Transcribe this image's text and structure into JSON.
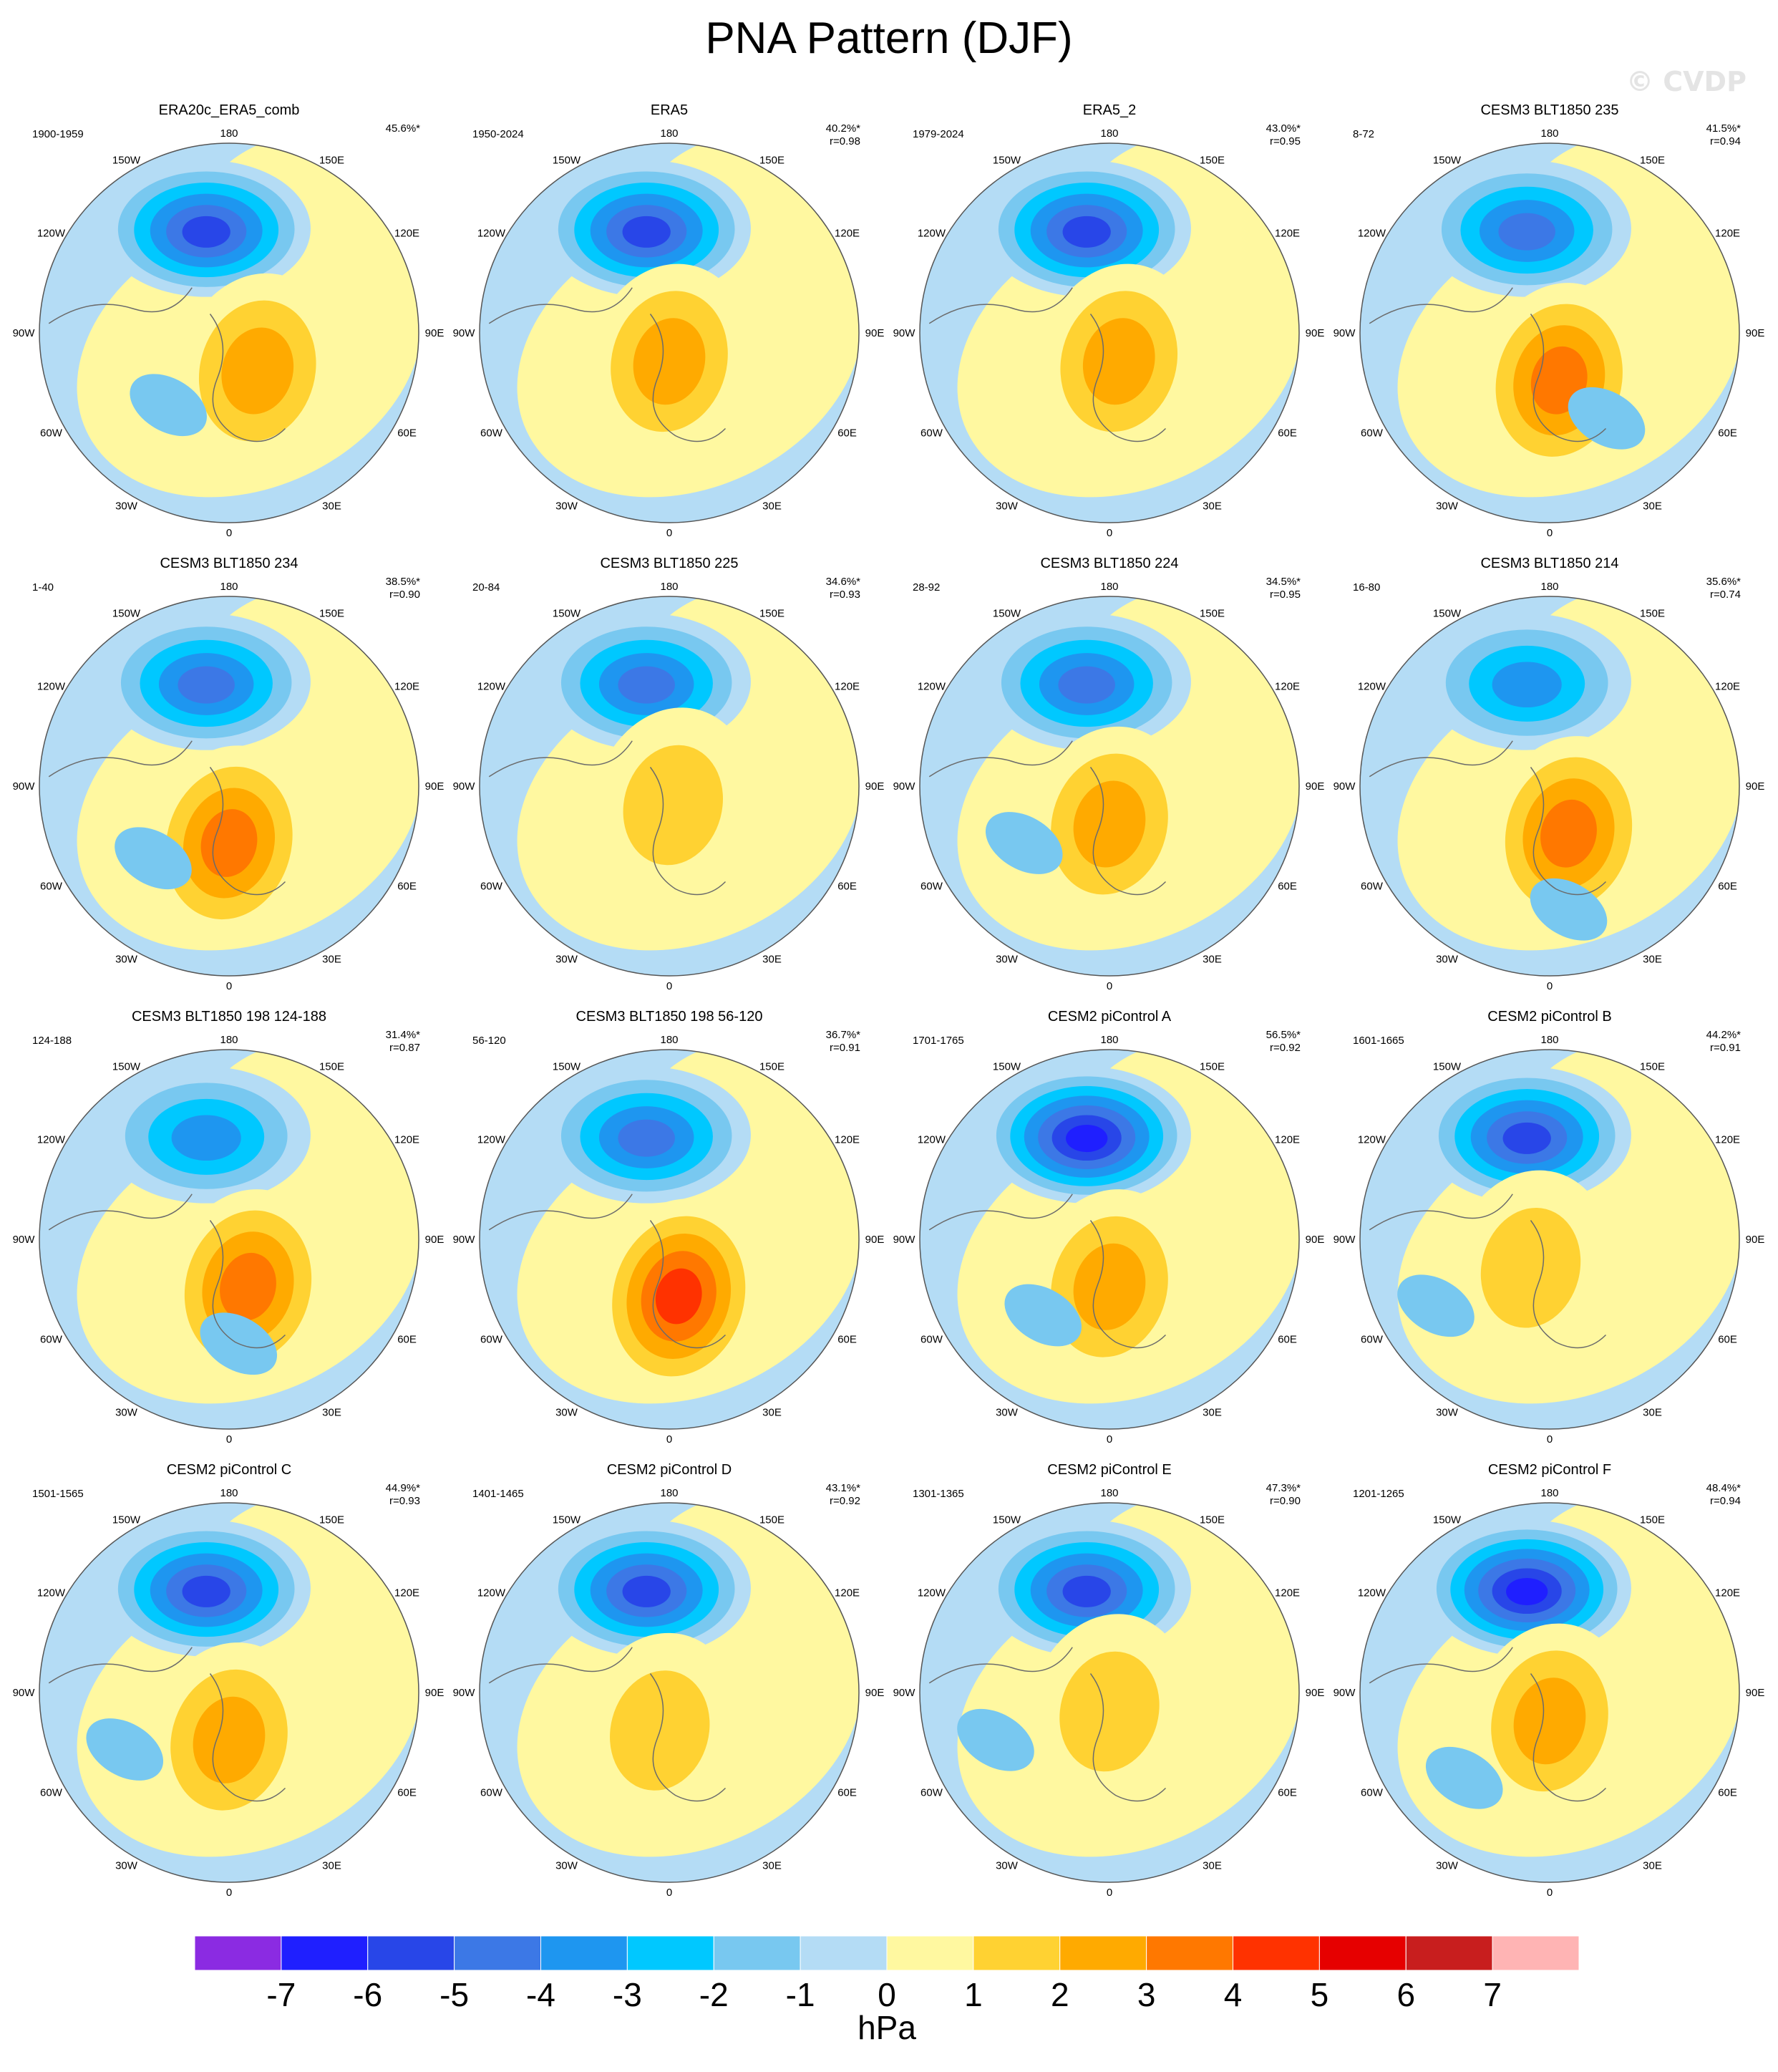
{
  "title": "PNA Pattern (DJF)",
  "watermark": "© CVDP",
  "chart_data": {
    "type": "contour-map-grid",
    "projection": "north-polar-stereographic",
    "variable": "sea level pressure anomaly",
    "units": "hPa",
    "longitude_labels": [
      "180",
      "150E",
      "120E",
      "90E",
      "60E",
      "30E",
      "0",
      "30W",
      "60W",
      "90W",
      "120W",
      "150W"
    ],
    "colorbar": {
      "ticks": [
        "-7",
        "-6",
        "-5",
        "-4",
        "-3",
        "-2",
        "-1",
        "0",
        "1",
        "2",
        "3",
        "4",
        "5",
        "6",
        "7"
      ],
      "colors": [
        "#8b2be2",
        "#1f1fff",
        "#2846e8",
        "#3c78e6",
        "#1e96f0",
        "#00c8ff",
        "#78c8f0",
        "#b4dcf5",
        "#fff8a0",
        "#ffd232",
        "#ffaa00",
        "#ff7800",
        "#ff3200",
        "#e60000",
        "#c81e1e",
        "#ffb4b4"
      ],
      "unit_label": "hPa"
    },
    "panels": [
      {
        "name": "ERA20c_ERA5_comb",
        "period": "1900-1959",
        "variance": "45.6%*",
        "corr": "",
        "low": -6,
        "high": 3,
        "pos": [
          0.15,
          0.35
        ],
        "blob": [
          -0.32,
          -0.38
        ]
      },
      {
        "name": "ERA5",
        "period": "1950-2024",
        "variance": "40.2%*",
        "corr": "r=0.98",
        "low": -6,
        "high": 3,
        "pos": [
          0.0,
          0.3
        ],
        "blob": []
      },
      {
        "name": "ERA5_2",
        "period": "1979-2024",
        "variance": "43.0%*",
        "corr": "r=0.95",
        "low": -6,
        "high": 3,
        "pos": [
          0.05,
          0.3
        ],
        "blob": []
      },
      {
        "name": "CESM3 BLT1850 235",
        "period": "8-72",
        "variance": "41.5%*",
        "corr": "r=0.94",
        "low": -5,
        "high": 4,
        "pos": [
          0.05,
          0.4
        ],
        "blob": [
          0.3,
          -0.45
        ]
      },
      {
        "name": "CESM3 BLT1850 234",
        "period": "1-40",
        "variance": "38.5%*",
        "corr": "r=0.90",
        "low": -5,
        "high": 4,
        "pos": [
          0.0,
          0.45
        ],
        "blob": [
          -0.4,
          -0.38
        ]
      },
      {
        "name": "CESM3 BLT1850 225",
        "period": "20-84",
        "variance": "34.6%*",
        "corr": "r=0.93",
        "low": -5,
        "high": 2,
        "pos": [
          0.02,
          0.25
        ],
        "blob": []
      },
      {
        "name": "CESM3 BLT1850 224",
        "period": "28-92",
        "variance": "34.5%*",
        "corr": "r=0.95",
        "low": -5,
        "high": 3,
        "pos": [
          0.0,
          0.35
        ],
        "blob": [
          -0.45,
          -0.3
        ]
      },
      {
        "name": "CESM3 BLT1850 214",
        "period": "16-80",
        "variance": "35.6%*",
        "corr": "r=0.74",
        "low": -4,
        "high": 4,
        "pos": [
          0.1,
          0.4
        ],
        "blob": [
          0.1,
          -0.65
        ]
      },
      {
        "name": "CESM3 BLT1850 198 124-188",
        "period": "124-188",
        "variance": "31.4%*",
        "corr": "r=0.87",
        "low": -4,
        "high": 4,
        "pos": [
          0.1,
          0.4
        ],
        "blob": [
          0.05,
          -0.55
        ]
      },
      {
        "name": "CESM3 BLT1850 198 56-120",
        "period": "56-120",
        "variance": "36.7%*",
        "corr": "r=0.91",
        "low": -5,
        "high": 5,
        "pos": [
          0.05,
          0.45
        ],
        "blob": []
      },
      {
        "name": "CESM2 piControl A",
        "period": "1701-1765",
        "variance": "56.5%*",
        "corr": "r=0.92",
        "low": -7,
        "high": 3,
        "pos": [
          0.0,
          0.4
        ],
        "blob": [
          -0.35,
          -0.4
        ]
      },
      {
        "name": "CESM2 piControl B",
        "period": "1601-1665",
        "variance": "44.2%*",
        "corr": "r=0.91",
        "low": -6,
        "high": 2,
        "pos": [
          -0.1,
          0.3
        ],
        "blob": [
          -0.6,
          -0.35
        ]
      },
      {
        "name": "CESM2 piControl C",
        "period": "1501-1565",
        "variance": "44.9%*",
        "corr": "r=0.93",
        "low": -6,
        "high": 3,
        "pos": [
          0.0,
          0.4
        ],
        "blob": [
          -0.55,
          -0.3
        ]
      },
      {
        "name": "CESM2 piControl D",
        "period": "1401-1465",
        "variance": "43.1%*",
        "corr": "r=0.92",
        "low": -6,
        "high": 2,
        "pos": [
          -0.05,
          0.35
        ],
        "blob": []
      },
      {
        "name": "CESM2 piControl E",
        "period": "1301-1365",
        "variance": "47.3%*",
        "corr": "r=0.90",
        "low": -6,
        "high": 2,
        "pos": [
          0.0,
          0.25
        ],
        "blob": [
          -0.6,
          -0.25
        ]
      },
      {
        "name": "CESM2 piControl F",
        "period": "1201-1265",
        "variance": "48.4%*",
        "corr": "r=0.94",
        "low": -7,
        "high": 3,
        "pos": [
          0.0,
          0.3
        ],
        "blob": [
          -0.45,
          -0.45
        ]
      }
    ]
  }
}
